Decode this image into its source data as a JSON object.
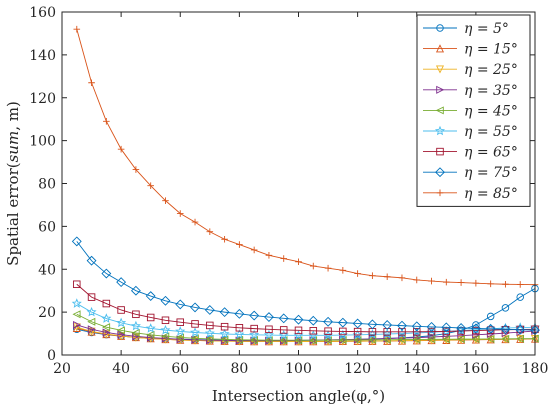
{
  "chart_data": {
    "type": "line",
    "title": "",
    "xlabel": "Intersection angle(φ,°)",
    "ylabel": "Spatial error(sum, m)",
    "xlim": [
      20,
      180
    ],
    "ylim": [
      0,
      160
    ],
    "xticks": [
      "20",
      "40",
      "60",
      "80",
      "100",
      "120",
      "140",
      "160",
      "180"
    ],
    "yticks": [
      "0",
      "20",
      "40",
      "60",
      "80",
      "100",
      "120",
      "140",
      "160"
    ],
    "x": [
      25,
      30,
      35,
      40,
      45,
      50,
      55,
      60,
      65,
      70,
      75,
      80,
      85,
      90,
      95,
      100,
      105,
      110,
      115,
      120,
      125,
      130,
      135,
      140,
      145,
      150,
      155,
      160,
      165,
      170,
      175,
      180
    ],
    "legend_position": "top-right",
    "grid": false,
    "series": [
      {
        "name": "η = 5°",
        "color": "#0072BD",
        "marker": "circle",
        "values": [
          12,
          10.5,
          9.5,
          8.8,
          8.3,
          7.9,
          7.6,
          7.4,
          7.2,
          7.0,
          6.9,
          6.8,
          6.8,
          6.8,
          6.8,
          6.8,
          6.9,
          7.0,
          7.1,
          7.3,
          7.5,
          7.7,
          8.0,
          8.4,
          9.0,
          10.0,
          11.5,
          14.0,
          18.0,
          22.0,
          27.0,
          31.0
        ]
      },
      {
        "name": "η = 15°",
        "color": "#D95319",
        "marker": "triangle-up",
        "values": [
          12.5,
          10.8,
          9.6,
          8.8,
          8.2,
          7.7,
          7.3,
          7.0,
          6.8,
          6.6,
          6.5,
          6.4,
          6.3,
          6.3,
          6.3,
          6.3,
          6.3,
          6.3,
          6.4,
          6.4,
          6.5,
          6.5,
          6.6,
          6.7,
          6.8,
          6.9,
          7.0,
          7.1,
          7.2,
          7.3,
          7.4,
          7.5
        ]
      },
      {
        "name": "η = 25°",
        "color": "#EDB120",
        "marker": "triangle-down",
        "values": [
          13,
          11,
          9.8,
          8.9,
          8.2,
          7.7,
          7.3,
          7.0,
          6.8,
          6.6,
          6.5,
          6.4,
          6.3,
          6.3,
          6.3,
          6.3,
          6.3,
          6.4,
          6.4,
          6.5,
          6.5,
          6.6,
          6.7,
          6.8,
          6.9,
          7.0,
          7.1,
          7.2,
          7.3,
          7.4,
          7.5,
          7.6
        ]
      },
      {
        "name": "η = 35°",
        "color": "#7E2F8E",
        "marker": "triangle-right",
        "values": [
          14,
          12,
          10.5,
          9.5,
          8.7,
          8.1,
          7.7,
          7.3,
          7.1,
          6.9,
          6.8,
          6.7,
          6.7,
          6.7,
          6.7,
          6.8,
          6.9,
          7.0,
          7.2,
          7.3,
          7.5,
          7.7,
          7.9,
          8.1,
          8.4,
          8.7,
          9.0,
          9.4,
          9.8,
          10.2,
          10.7,
          11.2
        ]
      },
      {
        "name": "η = 45°",
        "color": "#77AC30",
        "marker": "triangle-left",
        "values": [
          19,
          15.5,
          13,
          11.5,
          10.3,
          9.4,
          8.7,
          8.2,
          7.8,
          7.5,
          7.3,
          7.1,
          7.0,
          6.9,
          6.9,
          6.9,
          6.9,
          6.9,
          7.0,
          7.0,
          7.1,
          7.1,
          7.2,
          7.2,
          7.3,
          7.3,
          7.4,
          7.4,
          7.5,
          7.5,
          7.6,
          7.6
        ]
      },
      {
        "name": "η = 55°",
        "color": "#4DBEEE",
        "marker": "star",
        "values": [
          24,
          20,
          17,
          15,
          13.5,
          12.4,
          11.6,
          11,
          10.5,
          10.1,
          9.8,
          9.6,
          9.4,
          9.3,
          9.2,
          9.2,
          9.2,
          9.2,
          9.3,
          9.4,
          9.6,
          9.8,
          10.0,
          10.3,
          10.6,
          11.0,
          11.4,
          11.8,
          12.2,
          12.6,
          12.8,
          12.9
        ]
      },
      {
        "name": "η = 65°",
        "color": "#A2142F",
        "marker": "square",
        "values": [
          33,
          27,
          24,
          21,
          19,
          17.5,
          16.2,
          15.3,
          14.5,
          13.8,
          13.2,
          12.7,
          12.3,
          12.0,
          11.7,
          11.5,
          11.3,
          11.1,
          11.0,
          10.9,
          10.8,
          10.8,
          10.8,
          10.8,
          10.9,
          11.0,
          11.2,
          11.4,
          11.6,
          11.8,
          11.9,
          12.0
        ]
      },
      {
        "name": "η = 75°",
        "color": "#0072BD",
        "marker": "diamond",
        "values": [
          53,
          44,
          38,
          34,
          30,
          27.5,
          25.3,
          23.6,
          22.2,
          21,
          20,
          19.2,
          18.4,
          17.7,
          17.1,
          16.5,
          16,
          15.5,
          15.1,
          14.7,
          14.3,
          14,
          13.7,
          13.4,
          13.1,
          12.9,
          12.6,
          12.4,
          12.2,
          12.0,
          11.8,
          11.6
        ]
      },
      {
        "name": "η = 85°",
        "color": "#D95319",
        "marker": "plus",
        "values": [
          152,
          127,
          109,
          96,
          86.5,
          79,
          72,
          66,
          62,
          57.5,
          54,
          51.5,
          49,
          46.5,
          45,
          43.5,
          41.5,
          40.5,
          39.5,
          38,
          37,
          36.5,
          36,
          35,
          34.5,
          34,
          33.8,
          33.5,
          33.2,
          33,
          32.9,
          32.8
        ]
      }
    ]
  }
}
